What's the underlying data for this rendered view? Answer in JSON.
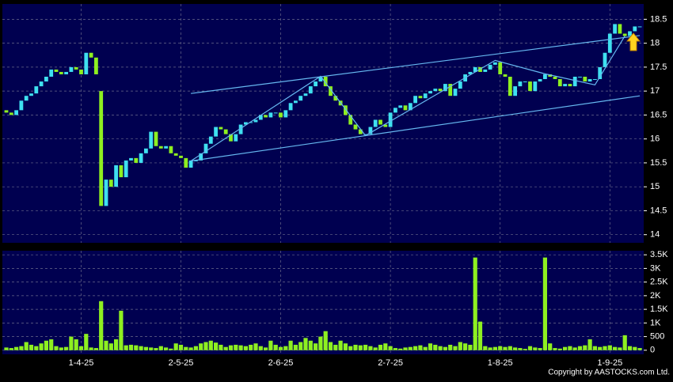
{
  "chart_data": [
    {
      "type": "candlestick",
      "up_color": "#3fe0f0",
      "down_color": "#8ef020",
      "grid": true,
      "ylim": [
        13.83,
        18.82
      ],
      "yticks": [
        14,
        14.5,
        15,
        15.5,
        16,
        16.5,
        17,
        17.5,
        18,
        18.5
      ],
      "xticks": [
        {
          "value": 15,
          "label": "1-4-25"
        },
        {
          "value": 35,
          "label": "2-5-25"
        },
        {
          "value": 55,
          "label": "2-6-25"
        },
        {
          "value": 77,
          "label": "2-7-25"
        },
        {
          "value": 99,
          "label": "1-8-25"
        },
        {
          "value": 121,
          "label": "1-9-25"
        }
      ],
      "open": [
        16.6,
        16.55,
        16.5,
        16.6,
        16.8,
        16.9,
        16.95,
        17.1,
        17.2,
        17.3,
        17.45,
        17.4,
        17.35,
        17.4,
        17.5,
        17.45,
        17.35,
        17.8,
        17.7,
        17.0,
        14.6,
        15.15,
        15.0,
        15.45,
        15.2,
        15.55,
        15.6,
        15.5,
        15.7,
        15.8,
        16.15,
        15.85,
        15.8,
        15.85,
        15.7,
        15.65,
        15.6,
        15.4,
        15.55,
        15.55,
        15.7,
        15.9,
        16.05,
        16.25,
        16.2,
        16.1,
        15.95,
        16.1,
        16.3,
        16.35,
        16.35,
        16.4,
        16.5,
        16.45,
        16.55,
        16.55,
        16.45,
        16.6,
        16.75,
        16.8,
        16.9,
        16.95,
        17.1,
        17.2,
        17.3,
        17.1,
        16.9,
        16.8,
        16.7,
        16.5,
        16.3,
        16.2,
        16.1,
        16.1,
        16.25,
        16.4,
        16.3,
        16.25,
        16.55,
        16.65,
        16.7,
        16.6,
        16.75,
        16.9,
        16.85,
        16.95,
        17.0,
        17.05,
        17.0,
        17.15,
        16.9,
        17.05,
        17.2,
        17.35,
        17.4,
        17.5,
        17.4,
        17.45,
        17.55,
        17.6,
        17.35,
        17.3,
        16.9,
        17.1,
        17.2,
        17.2,
        17.0,
        17.2,
        17.25,
        17.35,
        17.3,
        17.25,
        17.1,
        17.15,
        17.1,
        17.3,
        17.3,
        17.2,
        17.25,
        17.25,
        17.5,
        17.8,
        18.2,
        18.4,
        18.2,
        18.15,
        18.25,
        18.35
      ],
      "close": [
        16.55,
        16.5,
        16.6,
        16.8,
        16.9,
        16.95,
        17.1,
        17.2,
        17.3,
        17.45,
        17.4,
        17.35,
        17.4,
        17.5,
        17.45,
        17.35,
        17.8,
        17.7,
        17.35,
        14.6,
        15.15,
        15.0,
        15.45,
        15.2,
        15.55,
        15.6,
        15.5,
        15.7,
        15.8,
        16.15,
        15.85,
        15.8,
        15.85,
        15.7,
        15.65,
        15.6,
        15.4,
        15.55,
        15.55,
        15.7,
        15.9,
        16.05,
        16.25,
        16.2,
        16.1,
        15.95,
        16.1,
        16.3,
        16.35,
        16.35,
        16.4,
        16.5,
        16.45,
        16.55,
        16.55,
        16.45,
        16.6,
        16.75,
        16.8,
        16.9,
        16.95,
        17.1,
        17.2,
        17.3,
        17.1,
        16.9,
        16.8,
        16.7,
        16.5,
        16.3,
        16.2,
        16.1,
        16.1,
        16.25,
        16.4,
        16.3,
        16.25,
        16.55,
        16.65,
        16.7,
        16.6,
        16.75,
        16.9,
        16.85,
        16.95,
        17.0,
        17.05,
        17.0,
        17.15,
        16.9,
        17.05,
        17.2,
        17.35,
        17.4,
        17.5,
        17.4,
        17.45,
        17.55,
        17.6,
        17.35,
        17.3,
        16.9,
        17.1,
        17.2,
        17.2,
        17.0,
        17.2,
        17.25,
        17.35,
        17.3,
        17.25,
        17.1,
        17.15,
        17.1,
        17.3,
        17.3,
        17.2,
        17.25,
        17.25,
        17.5,
        17.8,
        18.2,
        18.4,
        18.2,
        18.15,
        18.25,
        18.35,
        18.35
      ],
      "trend_lines": [
        {
          "color": "#66b8f0",
          "points": [
            [
              37,
              16.95
            ],
            [
              127,
              18.16
            ]
          ]
        },
        {
          "color": "#66b8f0",
          "points": [
            [
              37,
              15.54
            ],
            [
              127,
              16.9
            ]
          ]
        },
        {
          "color": "#66b8f0",
          "points": [
            [
              37,
              15.54
            ],
            [
              63,
              17.31
            ],
            [
              72,
              16.07
            ],
            [
              98,
              17.64
            ],
            [
              108,
              17.36
            ],
            [
              118,
              17.13
            ],
            [
              124,
              18.15
            ]
          ]
        }
      ]
    },
    {
      "type": "bar",
      "color": "#8ef020",
      "grid": true,
      "ylim": [
        -150,
        3650
      ],
      "yticks": [
        0,
        500,
        {
          "value": 1000,
          "label": "1K"
        },
        {
          "value": 1500,
          "label": "1.5K"
        },
        {
          "value": 2000,
          "label": "2K"
        },
        {
          "value": 2500,
          "label": "2.5K"
        },
        {
          "value": 3000,
          "label": "3K"
        },
        {
          "value": 3500,
          "label": "3.5K"
        }
      ],
      "values": [
        100,
        80,
        120,
        150,
        300,
        200,
        150,
        250,
        350,
        400,
        150,
        100,
        120,
        500,
        400,
        150,
        600,
        100,
        80,
        1800,
        350,
        250,
        400,
        1450,
        180,
        200,
        180,
        150,
        120,
        100,
        80,
        150,
        100,
        60,
        250,
        200,
        120,
        100,
        150,
        250,
        300,
        350,
        280,
        200,
        120,
        180,
        200,
        180,
        150,
        200,
        250,
        150,
        100,
        350,
        200,
        120,
        150,
        350,
        200,
        300,
        450,
        350,
        250,
        500,
        700,
        300,
        200,
        350,
        250,
        150,
        200,
        180,
        200,
        150,
        100,
        200,
        250,
        150,
        80,
        60,
        100,
        120,
        150,
        180,
        120,
        250,
        200,
        150,
        120,
        200,
        150,
        300,
        250,
        200,
        3400,
        1050,
        150,
        100,
        120,
        150,
        120,
        150,
        100,
        80,
        50,
        150,
        100,
        80,
        3400,
        250,
        80,
        60,
        120,
        150,
        100,
        150,
        180,
        400,
        150,
        120,
        150,
        180,
        120,
        100,
        550,
        150,
        120,
        80
      ]
    },
    {
      "type": "text",
      "copyright": "Copyright by AASTOCKS.com Ltd."
    }
  ]
}
